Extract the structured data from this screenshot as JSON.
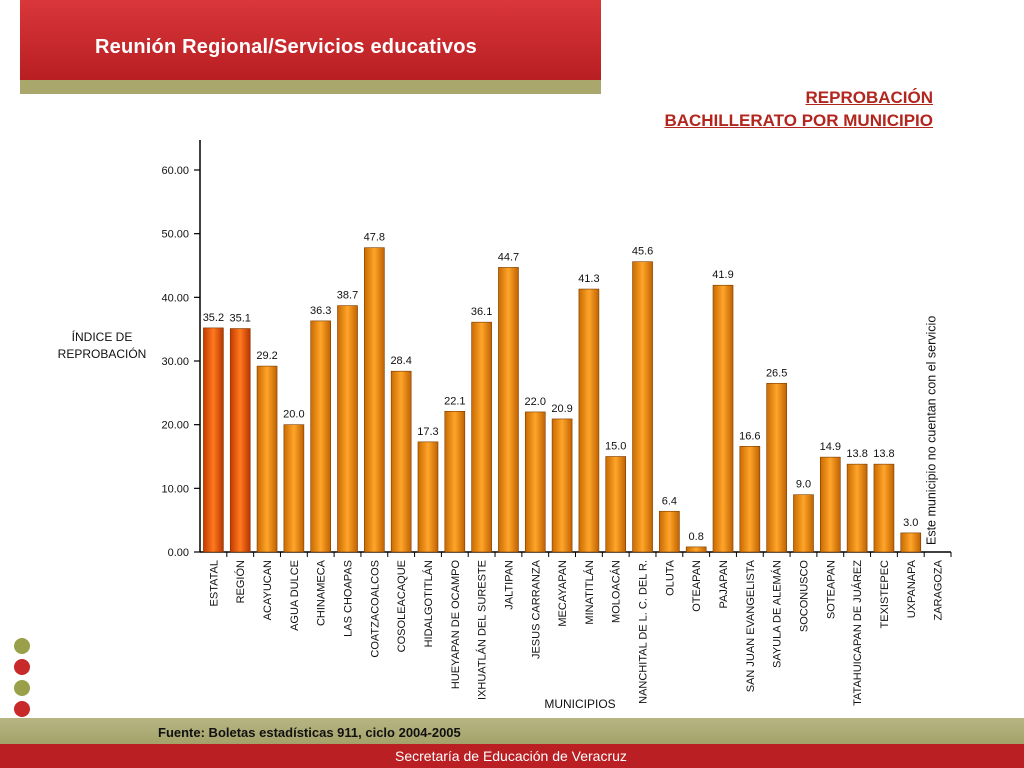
{
  "header": {
    "title": "Reunión Regional/Servicios educativos"
  },
  "slide_title": {
    "line1": "REPROBACIÓN",
    "line2": "BACHILLERATO POR MUNICIPIO"
  },
  "footer": {
    "source": "Fuente: Boletas estadísticas 911, ciclo 2004-2005",
    "org": "Secretaría de Educación de Veracruz"
  },
  "decor_dots": [
    "#9aa04a",
    "#c82a2a",
    "#9aa04a",
    "#c82a2a"
  ],
  "colors": {
    "bar": "#f08a0a",
    "bar_highlight": "#e6550d",
    "title_red": "#b3261e",
    "banner_red": "#c1282c",
    "olive": "#a9a76b"
  },
  "chart_data": {
    "type": "bar",
    "ylabel_line1": "ÍNDICE DE",
    "ylabel_line2": "REPROBACIÓN",
    "xlabel": "MUNICIPIOS",
    "ylim": [
      0,
      60
    ],
    "yticks": [
      "0.00",
      "10.00",
      "20.00",
      "30.00",
      "40.00",
      "50.00",
      "60.00"
    ],
    "categories": [
      "ESTATAL",
      "REGIÓN",
      "ACAYUCAN",
      "AGUA DULCE",
      "CHINAMECA",
      "LAS CHOAPAS",
      "COATZACOALCOS",
      "COSOLEACAQUE",
      "HIDALGOTITLÁN",
      "HUEYAPAN DE OCAMPO",
      "IXHUATLÁN DEL SURESTE",
      "JALTIPAN",
      "JESUS CARRANZA",
      "MECAYAPAN",
      "MINATITLÁN",
      "MOLOACÁN",
      "NANCHITAL DE L. C. DEL R.",
      "OLUTA",
      "OTEAPAN",
      "PAJAPAN",
      "SAN JUAN EVANGELISTA",
      "SAYULA DE ALEMÁN",
      "SOCONUSCO",
      "SOTEAPAN",
      "TATAHUICAPAN DE JUÁREZ",
      "TEXISTEPEC",
      "UXPANAPA",
      "ZARAGOZA"
    ],
    "values": [
      35.2,
      35.1,
      29.2,
      20.0,
      36.3,
      38.7,
      47.8,
      28.4,
      17.3,
      22.1,
      36.1,
      44.7,
      22.0,
      20.9,
      41.3,
      15.0,
      45.6,
      6.4,
      0.8,
      41.9,
      16.6,
      26.5,
      9.0,
      14.9,
      13.8,
      13.8,
      3.0,
      null
    ],
    "labels": [
      "35.2",
      "35.1",
      "29.2",
      "20.0",
      "36.3",
      "38.7",
      "47.8",
      "28.4",
      "17.3",
      "22.1",
      "36.1",
      "44.7",
      "22.0",
      "20.9",
      "41.3",
      "15.0",
      "45.6",
      "6.4",
      "0.8",
      "41.9",
      "16.6",
      "26.5",
      "9.0",
      "14.9",
      "13.8",
      "13.8",
      "3.0",
      ""
    ],
    "highlight": [
      "ESTATAL",
      "REGIÓN"
    ],
    "annotation": "Este municipio no cuentan con el servicio",
    "grid": false
  }
}
